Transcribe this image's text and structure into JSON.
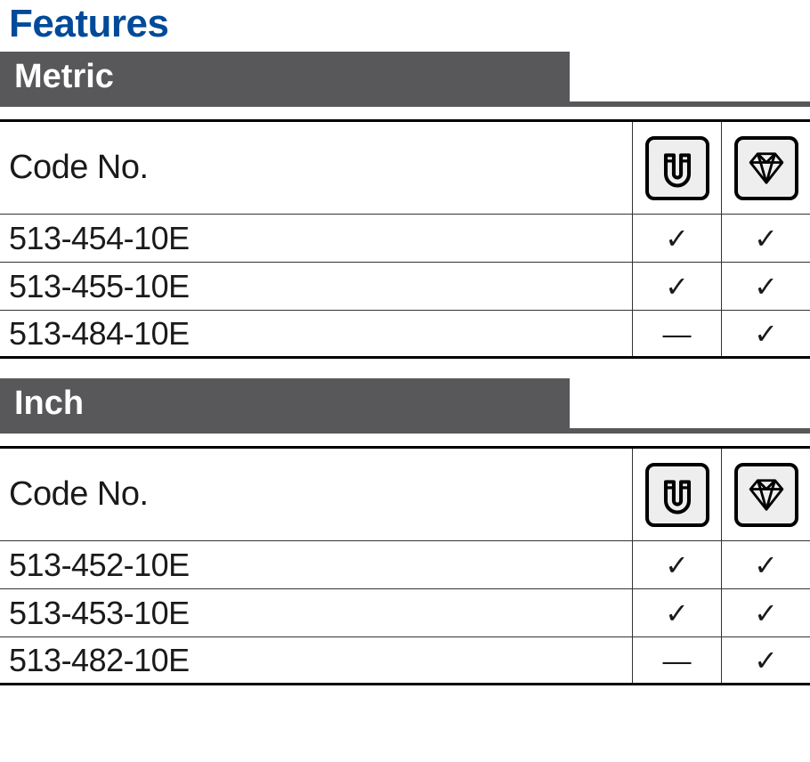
{
  "title": "Features",
  "title_color": "#004a99",
  "tab_bg": "#58585a",
  "tab_fg": "#ffffff",
  "check": "✓",
  "dash": "—",
  "sections": [
    {
      "label": "Metric",
      "header_label": "Code No.",
      "icons": [
        "magnet",
        "diamond"
      ],
      "rows": [
        {
          "code": "513-454-10E",
          "marks": [
            "check",
            "check"
          ]
        },
        {
          "code": "513-455-10E",
          "marks": [
            "check",
            "check"
          ]
        },
        {
          "code": "513-484-10E",
          "marks": [
            "dash",
            "check"
          ]
        }
      ]
    },
    {
      "label": "Inch",
      "header_label": "Code No.",
      "icons": [
        "magnet",
        "diamond"
      ],
      "rows": [
        {
          "code": "513-452-10E",
          "marks": [
            "check",
            "check"
          ]
        },
        {
          "code": "513-453-10E",
          "marks": [
            "check",
            "check"
          ]
        },
        {
          "code": "513-482-10E",
          "marks": [
            "dash",
            "check"
          ]
        }
      ]
    }
  ]
}
